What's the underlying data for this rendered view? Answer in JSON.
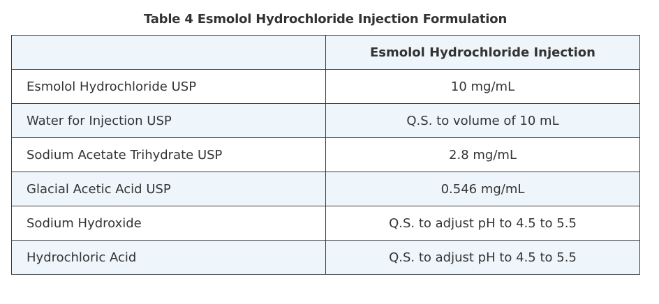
{
  "table": {
    "caption": "Table 4  Esmolol Hydrochloride Injection Formulation",
    "header": {
      "col1": "",
      "col2": "Esmolol Hydrochloride Injection"
    },
    "rows": [
      {
        "ingredient": "Esmolol Hydrochloride USP",
        "amount": "10 mg/mL"
      },
      {
        "ingredient": "Water for Injection USP",
        "amount": "Q.S. to volume of 10 mL"
      },
      {
        "ingredient": "Sodium Acetate Trihydrate USP",
        "amount": "2.8 mg/mL"
      },
      {
        "ingredient": "Glacial Acetic Acid USP",
        "amount": "0.546 mg/mL"
      },
      {
        "ingredient": "Sodium Hydroxide",
        "amount": "Q.S. to adjust pH to 4.5 to 5.5"
      },
      {
        "ingredient": "Hydrochloric Acid",
        "amount": "Q.S. to adjust pH to 4.5 to 5.5"
      }
    ]
  },
  "colors": {
    "shaded_row": "#eef6fb",
    "border": "#3a3a3a",
    "text": "#333333"
  }
}
